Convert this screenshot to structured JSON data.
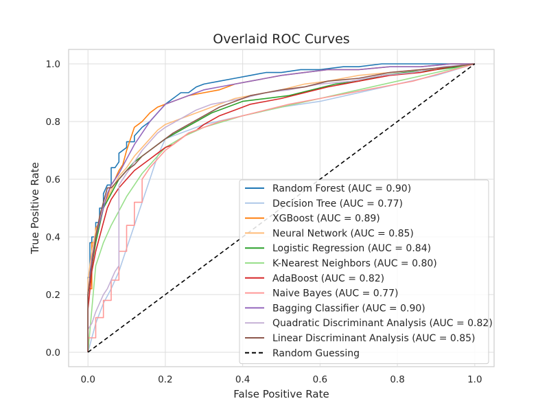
{
  "chart_data": {
    "type": "line",
    "title": "Overlaid ROC Curves",
    "xlabel": "False Positive Rate",
    "ylabel": "True Positive Rate",
    "xlim": [
      -0.05,
      1.05
    ],
    "ylim": [
      -0.05,
      1.05
    ],
    "xticks": [
      "0.0",
      "0.2",
      "0.4",
      "0.6",
      "0.8",
      "1.0"
    ],
    "yticks": [
      "0.0",
      "0.2",
      "0.4",
      "0.6",
      "0.8",
      "1.0"
    ],
    "grid": true,
    "legend_position": "lower right",
    "series": [
      {
        "name": "Random Forest (AUC = 0.90)",
        "color": "#1f77b4",
        "x": [
          0,
          0,
          0.005,
          0.005,
          0.01,
          0.01,
          0.02,
          0.02,
          0.03,
          0.03,
          0.04,
          0.04,
          0.05,
          0.06,
          0.06,
          0.07,
          0.08,
          0.08,
          0.1,
          0.1,
          0.12,
          0.12,
          0.14,
          0.16,
          0.18,
          0.2,
          0.22,
          0.24,
          0.26,
          0.28,
          0.3,
          0.34,
          0.38,
          0.42,
          0.46,
          0.5,
          0.55,
          0.6,
          0.66,
          0.7,
          0.76,
          0.8,
          0.86,
          0.9,
          0.95,
          1.0
        ],
        "y": [
          0,
          0.26,
          0.26,
          0.38,
          0.38,
          0.4,
          0.4,
          0.45,
          0.45,
          0.5,
          0.5,
          0.55,
          0.58,
          0.58,
          0.64,
          0.64,
          0.66,
          0.69,
          0.71,
          0.73,
          0.73,
          0.75,
          0.78,
          0.8,
          0.83,
          0.86,
          0.88,
          0.9,
          0.9,
          0.92,
          0.93,
          0.94,
          0.95,
          0.96,
          0.97,
          0.97,
          0.98,
          0.98,
          0.99,
          0.99,
          1.0,
          1.0,
          1.0,
          1.0,
          1.0,
          1.0
        ]
      },
      {
        "name": "Decision Tree (AUC = 0.77)",
        "color": "#aec7e8",
        "x": [
          0,
          0.02,
          0.04,
          0.06,
          0.08,
          0.1,
          0.12,
          0.14,
          0.16,
          0.18,
          0.2,
          0.3,
          0.4,
          0.5,
          0.6,
          0.7,
          0.8,
          0.9,
          1.0
        ],
        "y": [
          0,
          0.1,
          0.17,
          0.22,
          0.28,
          0.36,
          0.44,
          0.52,
          0.6,
          0.68,
          0.74,
          0.79,
          0.82,
          0.85,
          0.87,
          0.9,
          0.93,
          0.96,
          1.0
        ]
      },
      {
        "name": "XGBoost (AUC = 0.89)",
        "color": "#ff7f0e",
        "x": [
          0,
          0,
          0.01,
          0.01,
          0.02,
          0.02,
          0.03,
          0.04,
          0.05,
          0.06,
          0.07,
          0.08,
          0.09,
          0.1,
          0.11,
          0.12,
          0.13,
          0.14,
          0.16,
          0.18,
          0.2,
          0.22,
          0.26,
          0.3,
          0.34,
          0.38,
          0.42,
          0.46,
          0.5,
          0.56,
          0.62,
          0.7,
          0.78,
          0.86,
          0.94,
          1.0
        ],
        "y": [
          0,
          0.22,
          0.22,
          0.38,
          0.38,
          0.43,
          0.45,
          0.5,
          0.54,
          0.58,
          0.6,
          0.63,
          0.65,
          0.7,
          0.74,
          0.78,
          0.79,
          0.8,
          0.83,
          0.85,
          0.86,
          0.87,
          0.89,
          0.9,
          0.91,
          0.93,
          0.94,
          0.95,
          0.96,
          0.97,
          0.98,
          0.98,
          0.99,
          0.99,
          1.0,
          1.0
        ]
      },
      {
        "name": "Neural Network (AUC = 0.85)",
        "color": "#ffbb78",
        "x": [
          0,
          0,
          0.01,
          0.02,
          0.03,
          0.04,
          0.06,
          0.08,
          0.1,
          0.12,
          0.14,
          0.16,
          0.18,
          0.2,
          0.22,
          0.24,
          0.26,
          0.3,
          0.34,
          0.38,
          0.42,
          0.46,
          0.5,
          0.56,
          0.62,
          0.7,
          0.78,
          0.86,
          0.94,
          1.0
        ],
        "y": [
          0,
          0.25,
          0.35,
          0.42,
          0.46,
          0.5,
          0.56,
          0.61,
          0.64,
          0.68,
          0.71,
          0.74,
          0.77,
          0.79,
          0.8,
          0.81,
          0.82,
          0.84,
          0.86,
          0.88,
          0.89,
          0.9,
          0.91,
          0.93,
          0.94,
          0.96,
          0.97,
          0.98,
          0.99,
          1.0
        ]
      },
      {
        "name": "Logistic Regression (AUC = 0.84)",
        "color": "#2ca02c",
        "x": [
          0,
          0,
          0.01,
          0.02,
          0.03,
          0.04,
          0.06,
          0.08,
          0.1,
          0.12,
          0.14,
          0.16,
          0.18,
          0.2,
          0.24,
          0.28,
          0.32,
          0.36,
          0.4,
          0.46,
          0.52,
          0.58,
          0.64,
          0.7,
          0.76,
          0.82,
          0.9,
          0.96,
          1.0
        ],
        "y": [
          0,
          0.2,
          0.3,
          0.38,
          0.44,
          0.5,
          0.55,
          0.6,
          0.63,
          0.66,
          0.68,
          0.7,
          0.72,
          0.74,
          0.77,
          0.8,
          0.83,
          0.85,
          0.87,
          0.88,
          0.89,
          0.91,
          0.93,
          0.94,
          0.96,
          0.97,
          0.98,
          0.99,
          1.0
        ]
      },
      {
        "name": "K-Nearest Neighbors (AUC = 0.80)",
        "color": "#98df8a",
        "x": [
          0,
          0.02,
          0.04,
          0.06,
          0.08,
          0.1,
          0.12,
          0.14,
          0.16,
          0.18,
          0.2,
          0.25,
          0.3,
          0.4,
          0.5,
          0.6,
          0.7,
          0.8,
          0.9,
          1.0
        ],
        "y": [
          0,
          0.3,
          0.38,
          0.44,
          0.49,
          0.54,
          0.58,
          0.62,
          0.65,
          0.68,
          0.71,
          0.75,
          0.78,
          0.82,
          0.85,
          0.88,
          0.91,
          0.94,
          0.97,
          1.0
        ]
      },
      {
        "name": "AdaBoost (AUC = 0.82)",
        "color": "#d62728",
        "x": [
          0,
          0,
          0.01,
          0.02,
          0.03,
          0.04,
          0.05,
          0.06,
          0.08,
          0.1,
          0.12,
          0.14,
          0.16,
          0.18,
          0.2,
          0.22,
          0.24,
          0.26,
          0.28,
          0.3,
          0.34,
          0.38,
          0.42,
          0.46,
          0.5,
          0.56,
          0.62,
          0.7,
          0.78,
          0.86,
          0.94,
          1.0
        ],
        "y": [
          0,
          0.15,
          0.28,
          0.35,
          0.4,
          0.45,
          0.5,
          0.53,
          0.57,
          0.6,
          0.63,
          0.65,
          0.67,
          0.69,
          0.71,
          0.72,
          0.74,
          0.76,
          0.77,
          0.79,
          0.82,
          0.84,
          0.86,
          0.87,
          0.88,
          0.9,
          0.92,
          0.94,
          0.96,
          0.97,
          0.99,
          1.0
        ]
      },
      {
        "name": "Naive Bayes (AUC = 0.77)",
        "color": "#ff9896",
        "x": [
          0,
          0,
          0.02,
          0.02,
          0.04,
          0.04,
          0.06,
          0.06,
          0.08,
          0.08,
          0.1,
          0.1,
          0.12,
          0.12,
          0.14,
          0.14,
          0.16,
          0.18,
          0.2,
          0.22,
          0.24,
          0.26,
          0.3,
          0.34,
          0.4,
          0.46,
          0.52,
          0.6,
          0.68,
          0.76,
          0.84,
          0.92,
          1.0
        ],
        "y": [
          0,
          0.05,
          0.05,
          0.12,
          0.12,
          0.18,
          0.18,
          0.25,
          0.25,
          0.35,
          0.35,
          0.44,
          0.44,
          0.52,
          0.52,
          0.6,
          0.64,
          0.67,
          0.7,
          0.72,
          0.74,
          0.76,
          0.78,
          0.8,
          0.82,
          0.84,
          0.86,
          0.88,
          0.9,
          0.92,
          0.94,
          0.97,
          1.0
        ]
      },
      {
        "name": "Bagging Classifier (AUC = 0.90)",
        "color": "#9467bd",
        "x": [
          0,
          0,
          0.01,
          0.02,
          0.03,
          0.04,
          0.05,
          0.06,
          0.08,
          0.1,
          0.12,
          0.14,
          0.16,
          0.18,
          0.2,
          0.22,
          0.26,
          0.3,
          0.34,
          0.38,
          0.42,
          0.46,
          0.5,
          0.56,
          0.62,
          0.7,
          0.78,
          0.86,
          0.94,
          1.0
        ],
        "y": [
          0,
          0.2,
          0.32,
          0.4,
          0.45,
          0.5,
          0.55,
          0.58,
          0.62,
          0.67,
          0.72,
          0.76,
          0.8,
          0.83,
          0.86,
          0.87,
          0.89,
          0.91,
          0.92,
          0.93,
          0.94,
          0.95,
          0.96,
          0.97,
          0.98,
          0.98,
          0.99,
          0.99,
          1.0,
          1.0
        ]
      },
      {
        "name": "Quadratic Discriminant Analysis (AUC = 0.82)",
        "color": "#c5b0d5",
        "x": [
          0,
          0,
          0.01,
          0.02,
          0.03,
          0.04,
          0.05,
          0.06,
          0.07,
          0.08,
          0.08,
          0.1,
          0.12,
          0.14,
          0.16,
          0.18,
          0.2,
          0.24,
          0.28,
          0.32,
          0.36,
          0.4,
          0.46,
          0.52,
          0.6,
          0.68,
          0.76,
          0.84,
          0.92,
          1.0
        ],
        "y": [
          0,
          0.08,
          0.1,
          0.14,
          0.17,
          0.2,
          0.22,
          0.25,
          0.28,
          0.3,
          0.58,
          0.62,
          0.66,
          0.7,
          0.73,
          0.76,
          0.78,
          0.81,
          0.84,
          0.86,
          0.87,
          0.88,
          0.9,
          0.91,
          0.93,
          0.94,
          0.96,
          0.97,
          0.99,
          1.0
        ]
      },
      {
        "name": "Linear Discriminant Analysis (AUC = 0.85)",
        "color": "#8c564b",
        "x": [
          0,
          0,
          0.01,
          0.02,
          0.03,
          0.04,
          0.05,
          0.06,
          0.08,
          0.1,
          0.12,
          0.14,
          0.16,
          0.18,
          0.2,
          0.22,
          0.26,
          0.3,
          0.34,
          0.38,
          0.42,
          0.46,
          0.5,
          0.56,
          0.62,
          0.7,
          0.78,
          0.86,
          0.94,
          1.0
        ],
        "y": [
          0,
          0.2,
          0.3,
          0.4,
          0.47,
          0.52,
          0.57,
          0.57,
          0.6,
          0.63,
          0.65,
          0.68,
          0.7,
          0.72,
          0.74,
          0.76,
          0.79,
          0.82,
          0.85,
          0.87,
          0.89,
          0.9,
          0.91,
          0.92,
          0.94,
          0.95,
          0.97,
          0.98,
          0.99,
          1.0
        ]
      }
    ],
    "baseline": {
      "name": "Random Guessing",
      "color": "#000000",
      "x": [
        0,
        1
      ],
      "y": [
        0,
        1
      ]
    }
  }
}
